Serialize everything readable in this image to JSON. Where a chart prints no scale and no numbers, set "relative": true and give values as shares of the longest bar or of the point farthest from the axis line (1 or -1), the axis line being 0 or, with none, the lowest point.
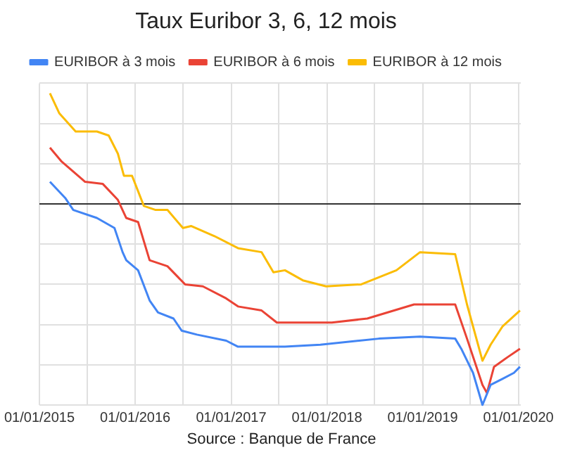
{
  "chart_data": {
    "type": "line",
    "title": "Taux Euribor 3, 6, 12 mois",
    "relative": true,
    "grid": true,
    "legend": "top",
    "annotations": [
      "Source : Banque de France"
    ],
    "xlim": [
      "2015-01-01",
      "2020-01-10"
    ],
    "xticks": [
      {
        "value": "2015-01-01",
        "label": "01/01/2015"
      },
      {
        "value": "2015-07-01",
        "label": null
      },
      {
        "value": "2016-01-01",
        "label": "01/01/2016"
      },
      {
        "value": "2016-07-01",
        "label": null
      },
      {
        "value": "2017-01-01",
        "label": "01/01/2017"
      },
      {
        "value": "2017-07-01",
        "label": null
      },
      {
        "value": "2018-01-01",
        "label": "01/01/2018"
      },
      {
        "value": "2018-07-01",
        "label": null
      },
      {
        "value": "2019-01-01",
        "label": "01/01/2019"
      },
      {
        "value": "2019-07-01",
        "label": null
      },
      {
        "value": "2020-01-01",
        "label": "01/01/2020"
      }
    ],
    "series": [
      {
        "name": "EURIBOR à 3 mois",
        "color": "#4285f4",
        "x": [
          "2015-02-10",
          "2015-04-09",
          "2015-05-10",
          "2015-08-08",
          "2015-10-14",
          "2015-11-14",
          "2015-11-28",
          "2016-01-12",
          "2016-02-25",
          "2016-03-28",
          "2016-05-26",
          "2016-06-26",
          "2016-08-23",
          "2016-12-13",
          "2017-01-27",
          "2017-07-25",
          "2017-12-07",
          "2018-07-18",
          "2018-12-22",
          "2019-05-05",
          "2019-05-28",
          "2019-07-12",
          "2019-08-17",
          "2019-09-17",
          "2019-11-01",
          "2019-12-15",
          "2020-01-07"
        ],
        "values": [
          0.11,
          0.03,
          -0.03,
          -0.07,
          -0.12,
          -0.24,
          -0.28,
          -0.33,
          -0.48,
          -0.54,
          -0.57,
          -0.63,
          -0.65,
          -0.68,
          -0.71,
          -0.71,
          -0.7,
          -0.67,
          -0.66,
          -0.67,
          -0.72,
          -0.84,
          -1.0,
          -0.9,
          -0.87,
          -0.84,
          -0.81
        ]
      },
      {
        "name": "EURIBOR à 6 mois",
        "color": "#ea4335",
        "x": [
          "2015-02-10",
          "2015-03-27",
          "2015-06-24",
          "2015-08-30",
          "2015-10-27",
          "2015-11-28",
          "2016-01-12",
          "2016-02-25",
          "2016-05-03",
          "2016-07-09",
          "2016-09-15",
          "2016-12-13",
          "2017-01-27",
          "2017-04-27",
          "2017-06-24",
          "2017-09-08",
          "2018-01-20",
          "2018-06-04",
          "2018-11-29",
          "2019-05-05",
          "2019-06-19",
          "2019-08-17",
          "2019-09-03",
          "2019-09-30",
          "2019-11-23",
          "2020-01-07"
        ],
        "values": [
          0.28,
          0.21,
          0.11,
          0.1,
          0.02,
          -0.07,
          -0.09,
          -0.28,
          -0.31,
          -0.4,
          -0.41,
          -0.47,
          -0.51,
          -0.53,
          -0.59,
          -0.59,
          -0.59,
          -0.57,
          -0.5,
          -0.5,
          -0.67,
          -0.9,
          -0.94,
          -0.81,
          -0.76,
          -0.72
        ]
      },
      {
        "name": "EURIBOR à 12 mois",
        "color": "#fbbc04",
        "x": [
          "2015-02-10",
          "2015-03-18",
          "2015-05-19",
          "2015-08-08",
          "2015-09-22",
          "2015-10-27",
          "2015-11-19",
          "2015-12-20",
          "2016-02-03",
          "2016-03-19",
          "2016-05-03",
          "2016-07-01",
          "2016-08-01",
          "2016-10-29",
          "2017-01-27",
          "2017-04-27",
          "2017-06-11",
          "2017-07-25",
          "2017-10-01",
          "2017-12-29",
          "2018-05-12",
          "2018-09-23",
          "2018-12-22",
          "2019-05-05",
          "2019-06-19",
          "2019-08-17",
          "2019-09-17",
          "2019-11-01",
          "2020-01-07"
        ],
        "values": [
          0.55,
          0.45,
          0.36,
          0.36,
          0.34,
          0.25,
          0.14,
          0.14,
          -0.01,
          -0.03,
          -0.03,
          -0.12,
          -0.11,
          -0.16,
          -0.22,
          -0.24,
          -0.34,
          -0.33,
          -0.38,
          -0.41,
          -0.4,
          -0.33,
          -0.24,
          -0.25,
          -0.5,
          -0.78,
          -0.7,
          -0.61,
          -0.53
        ]
      }
    ]
  }
}
